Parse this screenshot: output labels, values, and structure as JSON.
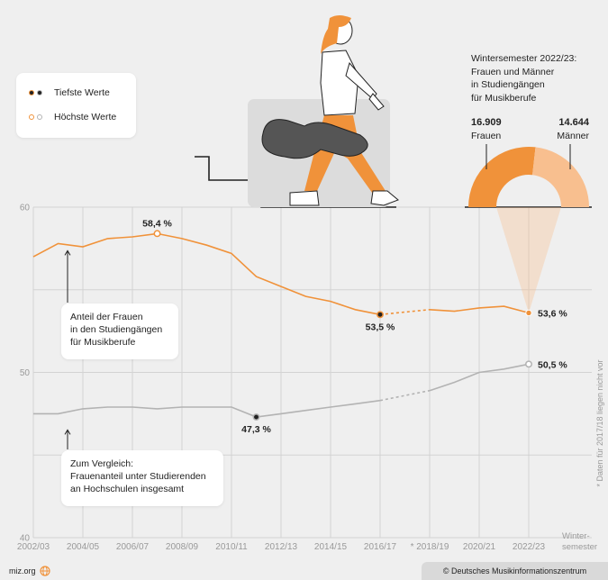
{
  "legend": {
    "low_label": "Tiefste Werte",
    "high_label": "Höchste Werte"
  },
  "donut": {
    "title_lines": [
      "Wintersemester 2022/23:",
      "Frauen und Männer",
      "in Studiengängen",
      "für Musikberufe"
    ],
    "women_value": "16.909",
    "women_label": "Frauen",
    "men_value": "14.644",
    "men_label": "Männer",
    "women": 16909,
    "men": 14644
  },
  "callouts": {
    "women_share": [
      "Anteil der Frauen",
      "in den Studiengängen",
      "für Musikberufe"
    ],
    "comparison": [
      "Zum Vergleich:",
      "Frauenanteil unter Studierenden",
      "an Hochschulen insgesamt"
    ]
  },
  "annotations": {
    "max_music": "58,4 %",
    "min_music": "53,5 %",
    "end_music": "53,6 %",
    "min_total": "47,3 %",
    "end_total": "50,5 %"
  },
  "axis": {
    "x_title_lines": [
      "Winter-",
      "semester"
    ],
    "side_note": "* Daten für 2017/18 liegen nicht vor"
  },
  "footer": {
    "site": "miz.org",
    "copyright": "© Deutsches Musikinformationszentrum"
  },
  "colors": {
    "music": "#f0923a",
    "total": "#b3b3b3",
    "donut_women": "#f0923a",
    "donut_men": "#f8bf8f",
    "low_marker": "#222222"
  },
  "chart_data": {
    "type": "line",
    "x": [
      "2002/03",
      "2003/04",
      "2004/05",
      "2005/06",
      "2006/07",
      "2007/08",
      "2008/09",
      "2009/10",
      "2010/11",
      "2011/12",
      "2012/13",
      "2013/14",
      "2014/15",
      "2015/16",
      "2016/17",
      "2017/18",
      "2018/19",
      "2019/20",
      "2020/21",
      "2021/22",
      "2022/23"
    ],
    "x_tick_labels": [
      "2002/03",
      "2004/05",
      "2006/07",
      "2008/09",
      "2010/11",
      "2012/13",
      "2014/15",
      "2016/17",
      "* 2018/19",
      "2020/21",
      "2022/23"
    ],
    "x_tick_values": [
      "2002/03",
      "2004/05",
      "2006/07",
      "2008/09",
      "2010/11",
      "2012/13",
      "2014/15",
      "2016/17",
      "2018/19",
      "2020/21",
      "2022/23"
    ],
    "missing_x": "2017/18",
    "series": [
      {
        "key": "music",
        "values": [
          57.0,
          57.8,
          57.6,
          58.1,
          58.2,
          58.4,
          58.1,
          57.7,
          57.2,
          55.8,
          55.2,
          54.6,
          54.3,
          53.8,
          53.5,
          null,
          53.8,
          53.7,
          53.9,
          54.0,
          53.6
        ],
        "min_index": 14,
        "max_index": 5
      },
      {
        "key": "total",
        "values": [
          47.5,
          47.5,
          47.8,
          47.9,
          47.9,
          47.8,
          47.9,
          47.9,
          47.9,
          47.3,
          47.5,
          47.7,
          47.9,
          48.1,
          48.3,
          null,
          48.9,
          49.4,
          50.0,
          50.2,
          50.5
        ],
        "min_index": 9,
        "max_index": 20
      }
    ],
    "ylim": [
      40,
      60
    ],
    "yticks": [
      40,
      50,
      60
    ],
    "grid": true
  }
}
